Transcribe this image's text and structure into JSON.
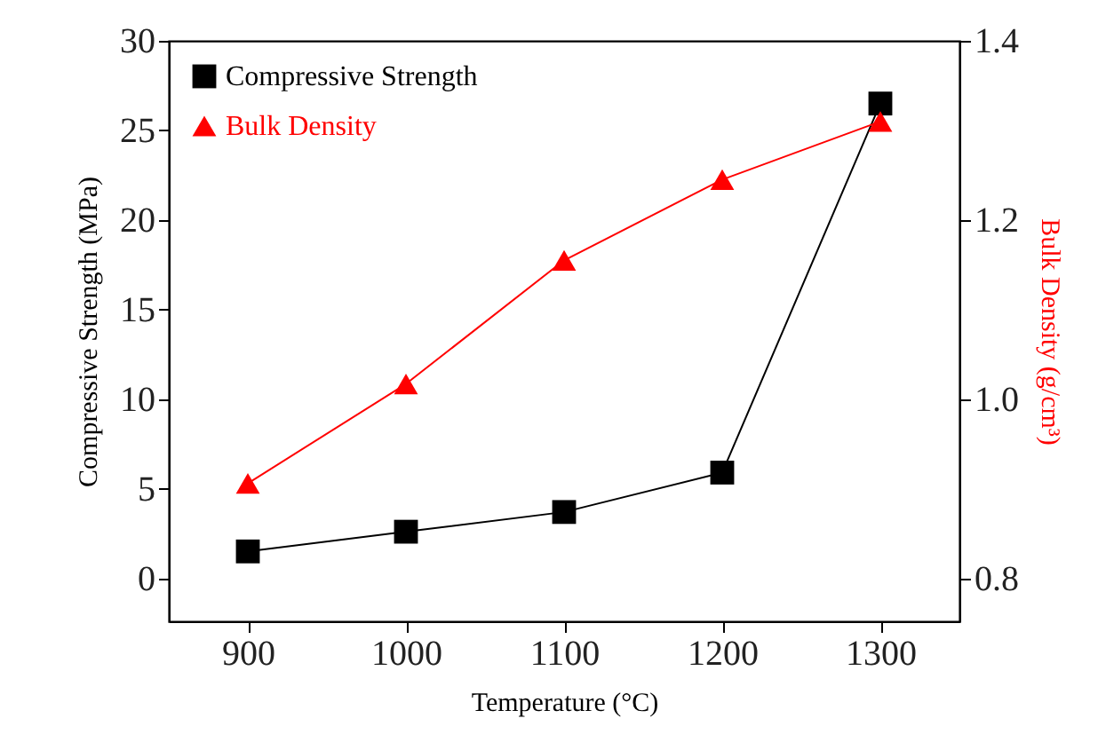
{
  "chart_data": {
    "type": "line",
    "xlabel": "Temperature (°C)",
    "ylabel": "Compressive Strength (MPa)",
    "y2label": "Bulk Density (g/cm³)",
    "x": [
      900,
      1000,
      1100,
      1200,
      1300
    ],
    "xlim": [
      850,
      1350
    ],
    "xticks": [
      900,
      1000,
      1100,
      1200,
      1300
    ],
    "ylim": [
      -2.4,
      30
    ],
    "yticks": [
      0,
      5,
      10,
      15,
      20,
      25,
      30
    ],
    "y2lim": [
      0.752,
      1.4
    ],
    "y2ticks": [
      {
        "value": 0.8,
        "label": "0.8"
      },
      {
        "value": 1,
        "label": "1.0"
      },
      {
        "value": 1.2,
        "label": "1.2"
      },
      {
        "value": 1.4,
        "label": "1.4"
      }
    ],
    "legend": "top left",
    "grid": false,
    "series": [
      {
        "name": "Compressive Strength",
        "color": "#000000",
        "marker": "square",
        "values": [
          1.5,
          2.6,
          3.7,
          5.9,
          26.5
        ]
      },
      {
        "name": "Bulk Density",
        "color": "#ff0000",
        "marker": "triangle",
        "axis": "y2",
        "values": [
          0.906,
          1.017,
          1.155,
          1.245,
          1.31
        ]
      }
    ]
  }
}
